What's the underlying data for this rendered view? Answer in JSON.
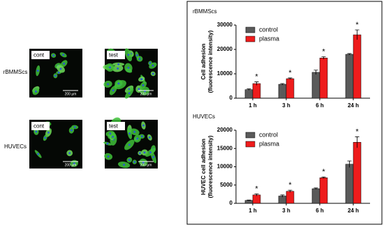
{
  "images": {
    "row_labels": [
      "rBMMScs",
      "HUVECs"
    ],
    "panel_labels": [
      [
        "cont",
        "test"
      ],
      [
        "cont",
        "test"
      ]
    ],
    "scale_bar": "200 µm"
  },
  "chart_data": [
    {
      "type": "bar",
      "title": "rBMMScs",
      "y_label": [
        "Cell adhesion",
        "(fluorescence intensity)"
      ],
      "categories": [
        "1 h",
        "3 h",
        "6 h",
        "24 h"
      ],
      "series": [
        {
          "name": "control",
          "color": "#5a5a5a",
          "values": [
            3500,
            5700,
            10600,
            18000
          ],
          "errors": [
            300,
            300,
            900,
            300
          ]
        },
        {
          "name": "plasma",
          "color": "#ee1c1c",
          "values": [
            6000,
            8000,
            16500,
            26000
          ],
          "errors": [
            700,
            300,
            500,
            2000
          ]
        }
      ],
      "significance": [
        "*",
        "*",
        "*",
        "*"
      ],
      "ylim": [
        0,
        30000
      ],
      "yticks": [
        0,
        10000,
        20000,
        30000
      ]
    },
    {
      "type": "bar",
      "title": "HUVECs",
      "y_label": [
        "HUVEC cell adhesion",
        "(fluorescence intensity)"
      ],
      "categories": [
        "1 h",
        "3 h",
        "6 h",
        "24 h"
      ],
      "series": [
        {
          "name": "control",
          "color": "#5a5a5a",
          "values": [
            800,
            2000,
            4000,
            10700
          ],
          "errors": [
            100,
            300,
            200,
            900
          ]
        },
        {
          "name": "plasma",
          "color": "#ee1c1c",
          "values": [
            2300,
            3300,
            7000,
            16700
          ],
          "errors": [
            300,
            300,
            200,
            1500
          ]
        }
      ],
      "significance": [
        "*",
        "*",
        "*",
        "*"
      ],
      "ylim": [
        0,
        20000
      ],
      "yticks": [
        0,
        5000,
        10000,
        15000,
        20000
      ]
    }
  ]
}
